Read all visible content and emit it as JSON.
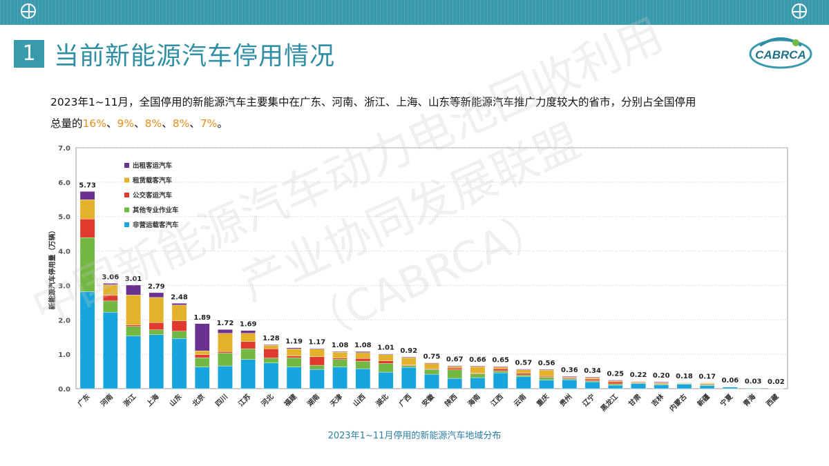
{
  "header": {
    "section_number": "1",
    "title": "当前新能源汽车停用情况",
    "logo_text": "CABRCA"
  },
  "paragraph": {
    "line1": "2023年1~11月，全国停用的新能源汽车主要集中在广东、河南、浙江、上海、山东等新能源汽车推广力度较大的省市，分别占全国停用",
    "line2_prefix": "总量的",
    "percentages": [
      "16%",
      "9%",
      "8%",
      "8%",
      "7%"
    ],
    "separator": "、",
    "line2_suffix": "。"
  },
  "watermark": {
    "line1": "中国新能源汽车动力电池回收利用",
    "line2": "产业协同发展联盟",
    "line3": "（CABRCA）"
  },
  "caption": "2023年1~11月停用的新能源汽车地域分布",
  "colors": {
    "accent": "#3a9aad",
    "highlight": "#e58e1a",
    "series": [
      "#18a4dc",
      "#72b843",
      "#e03a2f",
      "#e4b12b",
      "#6a3190"
    ]
  },
  "chart_data": {
    "type": "bar",
    "stacked": true,
    "ylabel": "新能源汽车停用量（万辆）",
    "ylim": [
      0,
      7.0
    ],
    "yticks": [
      "0.0",
      "1.0",
      "2.0",
      "3.0",
      "4.0",
      "5.0",
      "6.0",
      "7.0"
    ],
    "grid": true,
    "legend_position": "top-left",
    "categories": [
      "广东",
      "河南",
      "浙江",
      "上海",
      "山东",
      "北京",
      "四川",
      "江苏",
      "河北",
      "福建",
      "湖南",
      "天津",
      "山西",
      "湖北",
      "广西",
      "安徽",
      "陕西",
      "海南",
      "江西",
      "云南",
      "重庆",
      "贵州",
      "辽宁",
      "黑龙江",
      "甘肃",
      "吉林",
      "内蒙古",
      "新疆",
      "宁夏",
      "青海",
      "西藏"
    ],
    "totals": [
      5.73,
      3.06,
      3.01,
      2.79,
      2.48,
      1.89,
      1.72,
      1.69,
      1.28,
      1.19,
      1.17,
      1.08,
      1.08,
      1.01,
      0.92,
      0.75,
      0.67,
      0.66,
      0.65,
      0.57,
      0.56,
      0.36,
      0.34,
      0.25,
      0.22,
      0.2,
      0.18,
      0.17,
      0.06,
      0.03,
      0.02
    ],
    "series": [
      {
        "name": "非营运载客汽车",
        "color": "#18a4dc",
        "values": [
          2.82,
          2.22,
          1.53,
          1.57,
          1.46,
          0.63,
          0.66,
          0.85,
          0.75,
          0.63,
          0.56,
          0.63,
          0.58,
          0.48,
          0.62,
          0.42,
          0.3,
          0.32,
          0.46,
          0.35,
          0.25,
          0.26,
          0.2,
          0.1,
          0.15,
          0.11,
          0.13,
          0.09,
          0.05,
          0.02,
          0.015
        ]
      },
      {
        "name": "其他专业作业车",
        "color": "#72b843",
        "values": [
          1.57,
          0.33,
          0.28,
          0.14,
          0.21,
          0.27,
          0.38,
          0.31,
          0.14,
          0.27,
          0.12,
          0.22,
          0.22,
          0.25,
          0.05,
          0.14,
          0.25,
          0.11,
          0.06,
          0.05,
          0.08,
          0.03,
          0.03,
          0.04,
          0.02,
          0.03,
          0.02,
          0.03,
          0.005,
          0.005,
          0.003
        ]
      },
      {
        "name": "公交客运汽车",
        "color": "#e03a2f",
        "values": [
          0.54,
          0.16,
          0.04,
          0.21,
          0.3,
          0.09,
          0.04,
          0.21,
          0.27,
          0.05,
          0.25,
          0.04,
          0.08,
          0.08,
          0.02,
          0.02,
          0.05,
          0.02,
          0.06,
          0.05,
          0.03,
          0.03,
          0.05,
          0.06,
          0.02,
          0.02,
          0.01,
          0.02,
          0.003,
          0.003,
          0.001
        ]
      },
      {
        "name": "租赁载客汽车",
        "color": "#e4b12b",
        "values": [
          0.56,
          0.31,
          0.87,
          0.73,
          0.46,
          0.11,
          0.53,
          0.24,
          0.1,
          0.21,
          0.22,
          0.17,
          0.17,
          0.18,
          0.21,
          0.15,
          0.05,
          0.19,
          0.05,
          0.1,
          0.18,
          0.02,
          0.04,
          0.03,
          0.02,
          0.02,
          0.01,
          0.02,
          0.001,
          0.001,
          0.001
        ]
      },
      {
        "name": "出租客运汽车",
        "color": "#6a3190",
        "values": [
          0.24,
          0.04,
          0.29,
          0.14,
          0.05,
          0.79,
          0.11,
          0.08,
          0.02,
          0.03,
          0.02,
          0.02,
          0.03,
          0.02,
          0.02,
          0.02,
          0.02,
          0.02,
          0.02,
          0.02,
          0.02,
          0.02,
          0.02,
          0.02,
          0.01,
          0.02,
          0.01,
          0.01,
          0.001,
          0.001,
          0.0
        ]
      }
    ]
  }
}
